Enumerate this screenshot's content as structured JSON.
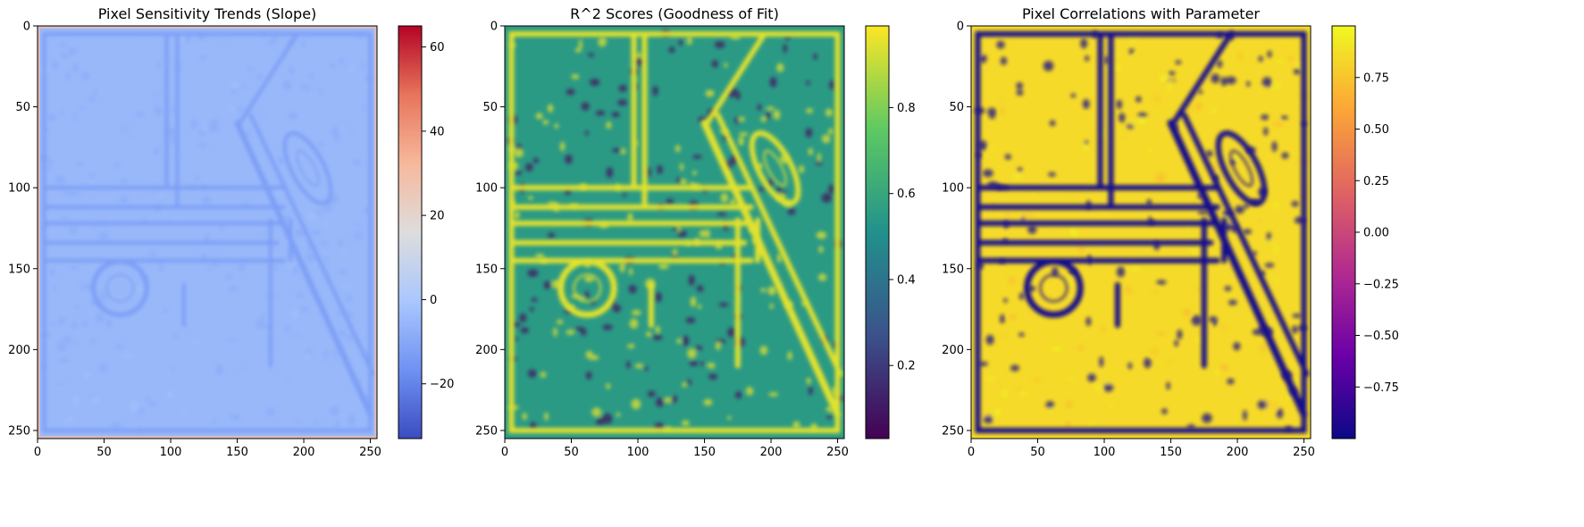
{
  "chart_data": [
    {
      "type": "heatmap",
      "title": "Pixel Sensitivity Trends (Slope)",
      "colormap": "coolwarm",
      "colormap_stops": [
        "#3b4cc0",
        "#6f92f3",
        "#aac7fd",
        "#dddddd",
        "#f7b89c",
        "#e7745b",
        "#b40426"
      ],
      "xlim": [
        0,
        255
      ],
      "ylim": [
        255,
        0
      ],
      "xticks": [
        "0",
        "50",
        "100",
        "150",
        "200",
        "250"
      ],
      "yticks": [
        "0",
        "50",
        "100",
        "150",
        "200",
        "250"
      ],
      "colorbar": {
        "range": [
          -33,
          65
        ],
        "ticks": [
          "−20",
          "0",
          "20",
          "40",
          "60"
        ],
        "tick_values": [
          -20,
          0,
          20,
          40,
          60
        ]
      },
      "background_value": -5,
      "features": {
        "border_value": 30,
        "structure_value": -13,
        "ring_center": [
          62,
          162
        ],
        "ring_radius": 20
      }
    },
    {
      "type": "heatmap",
      "title": "R^2 Scores (Goodness of Fit)",
      "colormap": "viridis",
      "colormap_stops": [
        "#440154",
        "#3b528b",
        "#21918c",
        "#5ec962",
        "#fde725"
      ],
      "xlim": [
        0,
        255
      ],
      "ylim": [
        255,
        0
      ],
      "xticks": [
        "0",
        "50",
        "100",
        "150",
        "200",
        "250"
      ],
      "yticks": [
        "0",
        "50",
        "100",
        "150",
        "200",
        "250"
      ],
      "colorbar": {
        "range": [
          0.03,
          0.99
        ],
        "ticks": [
          "0.2",
          "0.4",
          "0.6",
          "0.8"
        ],
        "tick_values": [
          0.2,
          0.4,
          0.6,
          0.8
        ]
      },
      "background_value": 0.55,
      "features": {
        "structure_value": 0.95,
        "edge_value": 0.08,
        "ring_center": [
          62,
          162
        ],
        "ring_radius": 20
      }
    },
    {
      "type": "heatmap",
      "title": "Pixel Correlations with Parameter",
      "colormap": "plasma",
      "colormap_stops": [
        "#0d0887",
        "#6a00a8",
        "#b12a90",
        "#e16462",
        "#fca636",
        "#f0f921"
      ],
      "xlim": [
        0,
        255
      ],
      "ylim": [
        255,
        0
      ],
      "xticks": [
        "0",
        "50",
        "100",
        "150",
        "200",
        "250"
      ],
      "yticks": [
        "0",
        "50",
        "100",
        "150",
        "200",
        "250"
      ],
      "colorbar": {
        "range": [
          -1,
          1
        ],
        "ticks": [
          "0.75",
          "0.50",
          "0.25",
          "0.00",
          "−0.25",
          "−0.50",
          "−0.75"
        ],
        "tick_values": [
          0.75,
          0.5,
          0.25,
          0,
          -0.25,
          -0.5,
          -0.75
        ]
      },
      "background_value": 0.85,
      "features": {
        "structure_value": -0.95,
        "ring_center": [
          62,
          162
        ],
        "ring_radius": 20
      }
    }
  ]
}
